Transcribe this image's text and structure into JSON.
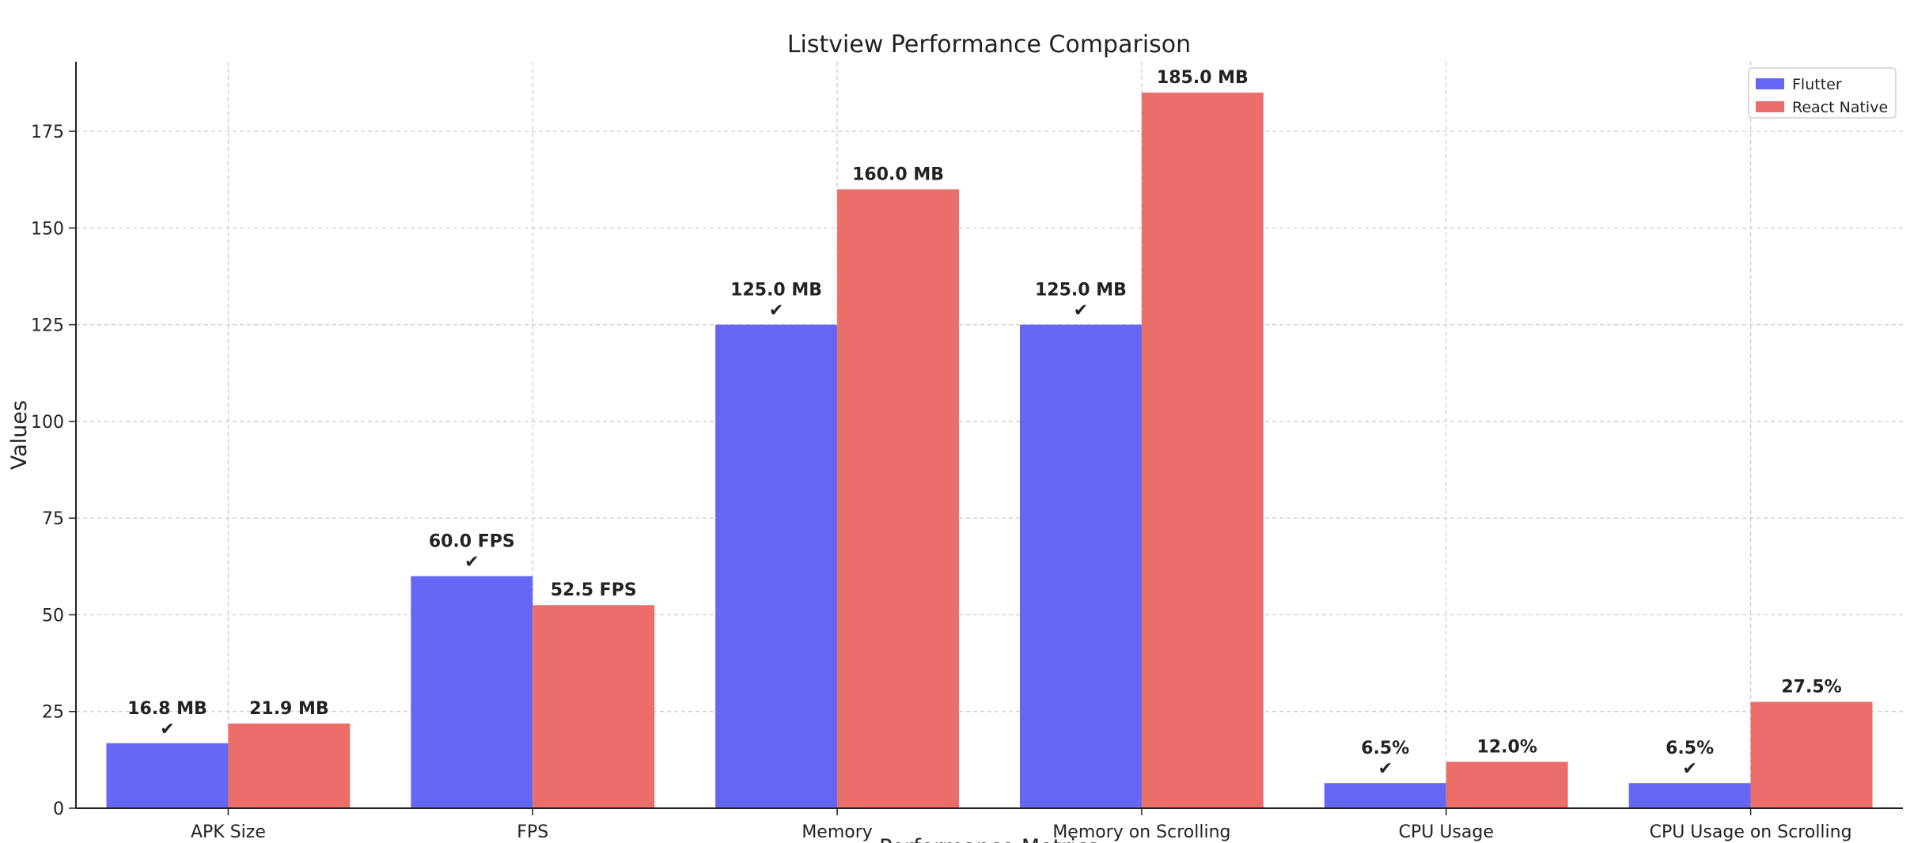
{
  "chart_data": {
    "type": "bar",
    "title": "Listview Performance Comparison",
    "xlabel": "Performance Metrics",
    "ylabel": "Values",
    "ylim": [
      0,
      193
    ],
    "yticks": [
      0,
      25,
      50,
      75,
      100,
      125,
      150,
      175
    ],
    "grid": true,
    "legend_position": "top-right",
    "categories": [
      "APK Size",
      "FPS",
      "Memory",
      "Memory on Scrolling",
      "CPU Usage",
      "CPU Usage on Scrolling"
    ],
    "series": [
      {
        "name": "Flutter",
        "color": "#6666f5",
        "values": [
          16.8,
          60.0,
          125.0,
          125.0,
          6.5,
          6.5
        ],
        "labels": [
          "16.8 MB",
          "60.0 FPS",
          "125.0 MB",
          "125.0 MB",
          "6.5%",
          "6.5%"
        ],
        "checkmarks": [
          true,
          true,
          true,
          true,
          true,
          true
        ]
      },
      {
        "name": "React Native",
        "color": "#ec6e6a",
        "values": [
          21.9,
          52.5,
          160.0,
          185.0,
          12.0,
          27.5
        ],
        "labels": [
          "21.9 MB",
          "52.5 FPS",
          "160.0 MB",
          "185.0 MB",
          "12.0%",
          "27.5%"
        ],
        "checkmarks": [
          false,
          false,
          false,
          false,
          false,
          false
        ]
      }
    ],
    "checkmark_symbol": "✔"
  }
}
